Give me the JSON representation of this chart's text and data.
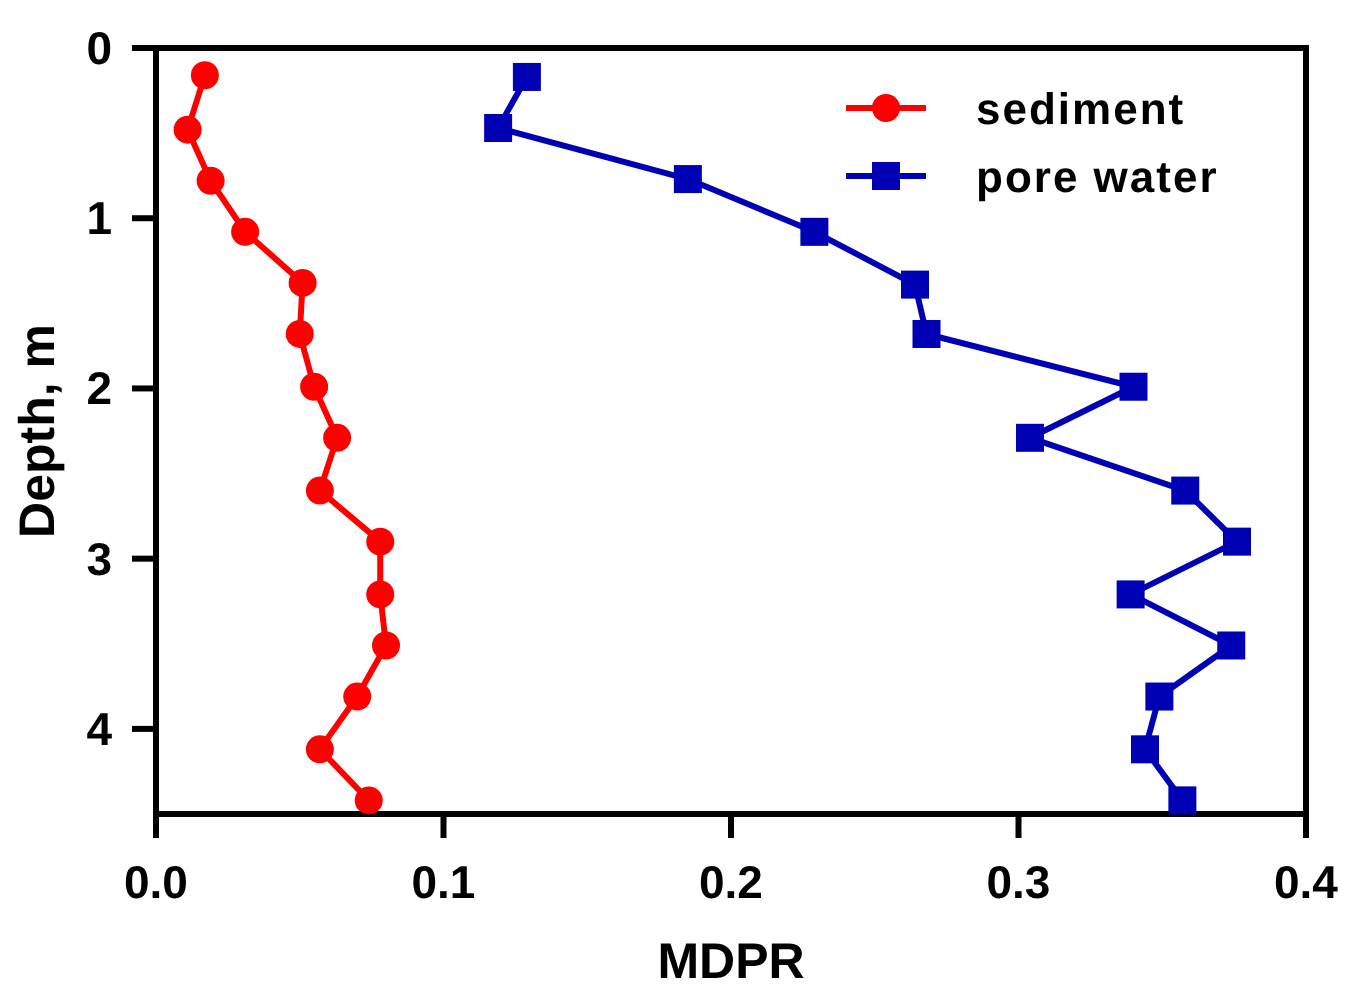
{
  "chart_data": {
    "type": "line",
    "xlabel": "MDPR",
    "ylabel": "Depth, m",
    "xlim": [
      0,
      0.4
    ],
    "xticks": [
      {
        "value": 0,
        "label": "0.0"
      },
      0.1,
      0.2,
      0.3,
      0.4
    ],
    "ylim": [
      4.5,
      0
    ],
    "yticks": [
      0,
      1,
      2,
      3,
      4
    ],
    "grid": false,
    "legend": "top right",
    "line_style": "solid",
    "series": [
      {
        "name": "sediment",
        "color": "#ff0000",
        "marker": "circle",
        "x": [
          0.017,
          0.011,
          0.019,
          0.031,
          0.051,
          0.05,
          0.055,
          0.063,
          0.057,
          0.078,
          0.078,
          0.08,
          0.07,
          0.057,
          0.074
        ],
        "values": [
          0.16,
          0.48,
          0.78,
          1.08,
          1.38,
          1.68,
          1.99,
          2.29,
          2.6,
          2.9,
          3.21,
          3.51,
          3.81,
          4.12,
          4.42
        ]
      },
      {
        "name": "pore water",
        "color": "#0000b4",
        "marker": "square",
        "x": [
          0.129,
          0.119,
          0.185,
          0.229,
          0.264,
          0.268,
          0.34,
          0.304,
          0.358,
          0.376,
          0.339,
          0.374,
          0.349,
          0.344,
          0.357
        ],
        "values": [
          0.17,
          0.47,
          0.77,
          1.08,
          1.39,
          1.68,
          1.99,
          2.29,
          2.6,
          2.9,
          3.21,
          3.51,
          3.81,
          4.12,
          4.42
        ]
      }
    ]
  }
}
